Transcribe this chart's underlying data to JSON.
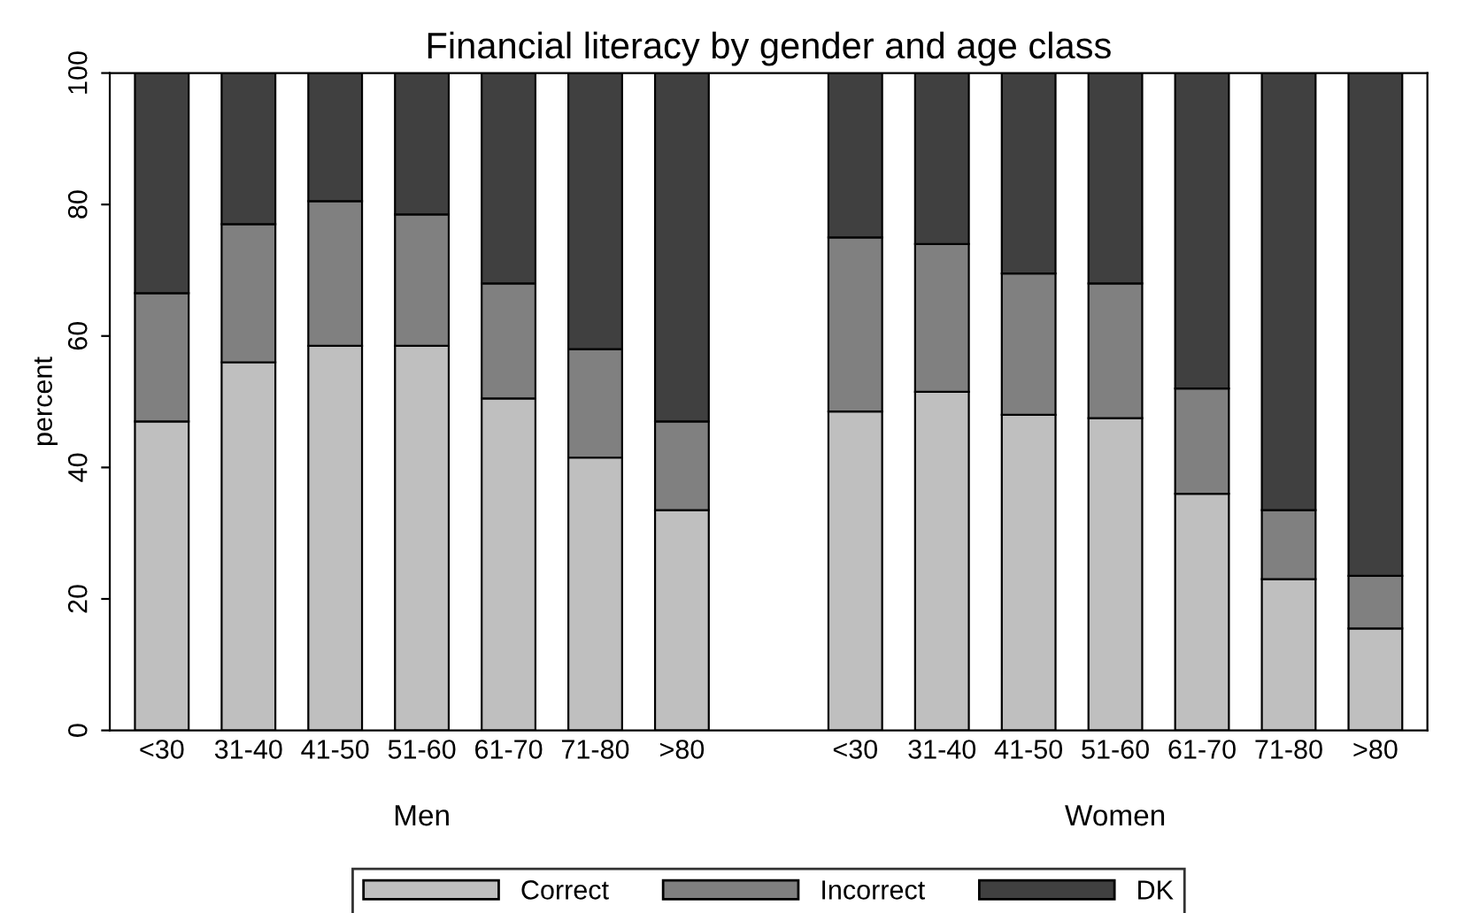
{
  "chart_data": {
    "type": "bar",
    "stacked": true,
    "title": "Financial literacy by gender and age class",
    "ylabel": "percent",
    "categories": [
      "<30",
      "31-40",
      "41-50",
      "51-60",
      "61-70",
      "71-80",
      ">80",
      null,
      "<30",
      "31-40",
      "41-50",
      "51-60",
      "61-70",
      "71-80",
      ">80"
    ],
    "series": [
      {
        "name": "Correct",
        "color": "#bfbfbf",
        "values": [
          47,
          56,
          58.5,
          58.5,
          50.5,
          41.5,
          33.5,
          null,
          48.5,
          51.5,
          48,
          47.5,
          36,
          23,
          15.5
        ]
      },
      {
        "name": "Incorrect",
        "color": "#808080",
        "values": [
          19.5,
          21,
          22,
          20,
          17.5,
          16.5,
          13.5,
          null,
          26.5,
          22.5,
          21.5,
          20.5,
          16,
          10.5,
          8
        ]
      },
      {
        "name": "DK",
        "color": "#404040",
        "values": [
          33.5,
          23,
          19.5,
          21.5,
          32,
          42,
          53,
          null,
          25,
          26,
          30.5,
          32,
          48,
          66.5,
          76.5
        ]
      }
    ],
    "annotations": [
      "Men",
      "Women"
    ],
    "ylim": [
      0,
      100
    ],
    "yticks": [
      0,
      20,
      40,
      60,
      80,
      100
    ],
    "grid": false,
    "legend": "bottom"
  }
}
